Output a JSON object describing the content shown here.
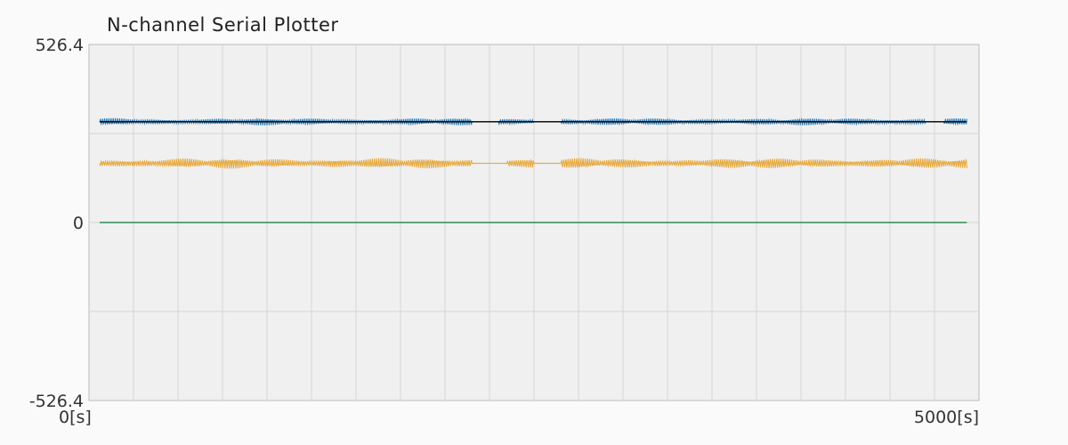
{
  "title": "N-channel Serial Plotter",
  "chart_data": {
    "type": "line",
    "title": "N-channel Serial Plotter",
    "xlabel": "",
    "ylabel": "",
    "xlim": [
      0,
      5000
    ],
    "ylim": [
      -526.4,
      526.4
    ],
    "x_tick_labels": [
      "0[s]",
      "5000[s]"
    ],
    "y_tick_labels": [
      "526.4",
      "0",
      "-526.4"
    ],
    "grid": true,
    "x_grid_step": 250,
    "y_grid_step": 263.2,
    "series": [
      {
        "color": "#1f77b4",
        "baseline": 298,
        "amplitude_range": [
          0,
          11
        ],
        "quiet_segments": [
          [
            2150,
            2300
          ],
          [
            2500,
            2650
          ],
          [
            4700,
            4800
          ],
          [
            4950,
            5000
          ]
        ]
      },
      {
        "color": "#000000",
        "baseline": 298,
        "amplitude_range": [
          0,
          0
        ]
      },
      {
        "color": "#e6a532",
        "baseline": 175,
        "amplitude_range": [
          0,
          16
        ],
        "quiet_segments": [
          [
            2150,
            2350
          ],
          [
            2500,
            2650
          ]
        ]
      },
      {
        "color": "#2e8b57",
        "baseline": 0,
        "amplitude_range": [
          0,
          0
        ]
      }
    ]
  }
}
